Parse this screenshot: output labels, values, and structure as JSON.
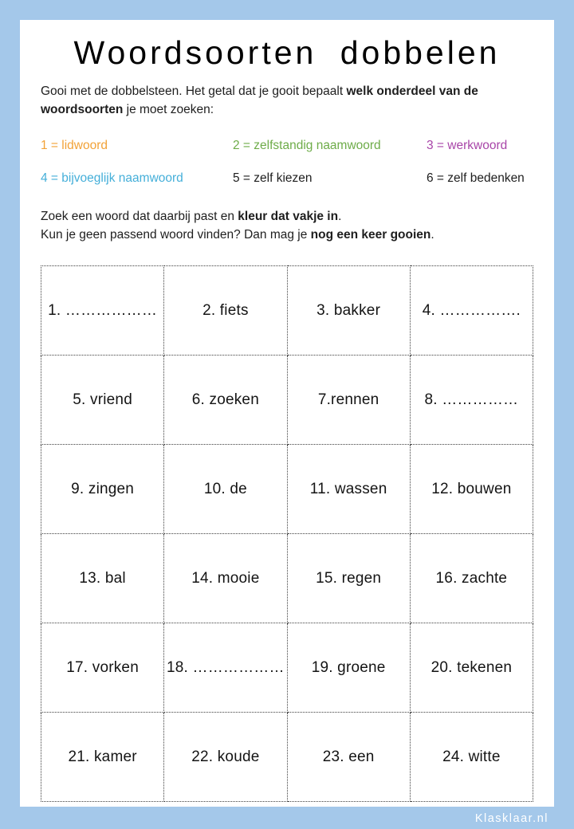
{
  "title": "Woordsoorten dobbelen",
  "intro": {
    "line1": [
      "Gooi met de dobbelsteen. Het getal dat je gooit bepaalt ",
      "welk onderdeel van de"
    ],
    "line2": [
      "woordsoorten",
      " je moet zoeken:"
    ]
  },
  "legend": {
    "items": [
      {
        "label": "1 = lidwoord",
        "color": "#F2A237"
      },
      {
        "label": "2 = zelfstandig naamwoord",
        "color": "#6EAC49"
      },
      {
        "label": "3 = werkwoord",
        "color": "#A845A8"
      },
      {
        "label": "4 = bijvoeglijk naamwoord",
        "color": "#45AFD9"
      },
      {
        "label": "5 = zelf kiezen",
        "color": "#1E1E1E"
      },
      {
        "label": "6 = zelf bedenken",
        "color": "#1E1E1E"
      }
    ]
  },
  "rules": {
    "line1": [
      "Zoek een woord dat daarbij past en ",
      "kleur dat vakje in",
      "."
    ],
    "line2": [
      "Kun je geen passend woord vinden? Dan mag je ",
      "nog een keer gooien",
      "."
    ]
  },
  "grid": {
    "columns": 4,
    "cells": [
      "1. ………………",
      "2. fiets",
      "3. bakker",
      "4. …………….",
      "5. vriend",
      "6. zoeken",
      "7.rennen",
      "8. ……………",
      "9. zingen",
      "10. de",
      "11. wassen",
      "12. bouwen",
      "13. bal",
      "14. mooie",
      "15. regen",
      "16. zachte",
      "17. vorken",
      "18. ………………",
      "19. groene",
      "20. tekenen",
      "21. kamer",
      "22. koude",
      "23. een",
      "24. witte"
    ]
  },
  "watermark": "Klasklaar.nl",
  "colors": {
    "page_border": "#A4C8EA",
    "grid_border": "#3f3f3f"
  }
}
